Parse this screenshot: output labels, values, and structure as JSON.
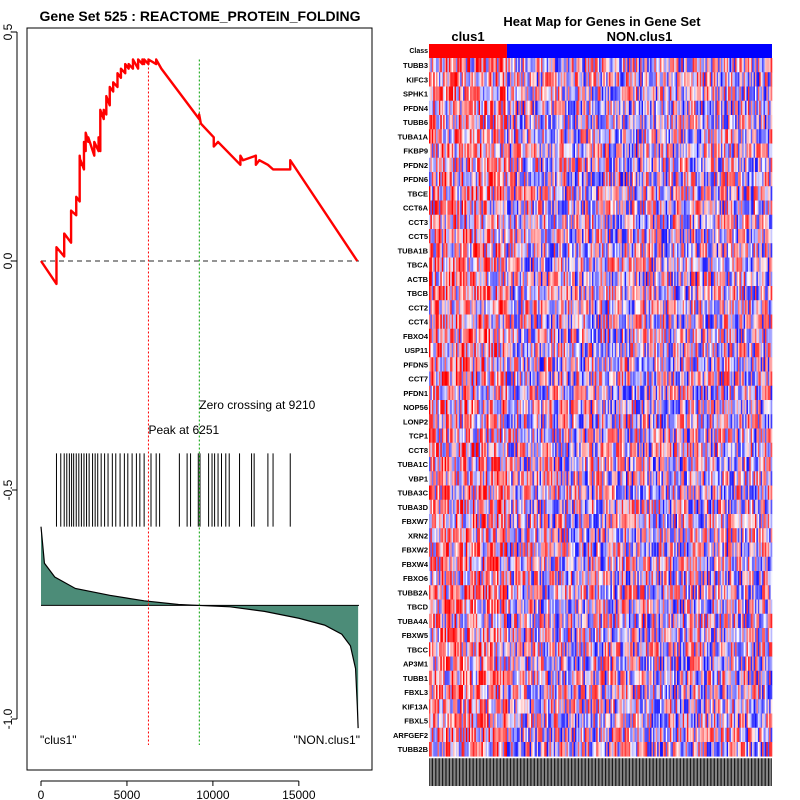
{
  "chart_data": [
    {
      "type": "line",
      "panel": "gsea-enrichment",
      "title": "Gene Set  525 : REACTOME_PROTEIN_FOLDING",
      "x_range": [
        0,
        18500
      ],
      "y_range": [
        -1.1,
        0.5
      ],
      "xticks": [
        0,
        5000,
        10000,
        15000
      ],
      "xtick_labels": [
        "0",
        "5000",
        "10000",
        "15000"
      ],
      "yticks": [
        0.5,
        0.0,
        -0.5,
        -1.0
      ],
      "ytick_labels": [
        "0.5",
        "0.0",
        "-0.5",
        "-1.0"
      ],
      "enrichment_score": {
        "x": [
          0,
          900,
          900,
          1350,
          1350,
          1750,
          1750,
          2050,
          2050,
          2250,
          2250,
          2300,
          2300,
          2500,
          2500,
          2600,
          2600,
          2750,
          2750,
          3100,
          3100,
          3350,
          3350,
          3450,
          3450,
          3650,
          3650,
          3800,
          3800,
          4000,
          4000,
          4200,
          4200,
          4450,
          4450,
          4650,
          4650,
          4900,
          4900,
          5100,
          5100,
          5350,
          5350,
          5650,
          5650,
          5900,
          5900,
          6000,
          6000,
          6251,
          6251,
          6700,
          6700,
          7000,
          9200,
          9200,
          9300,
          10050,
          10050,
          10300,
          11600,
          11600,
          11750,
          12500,
          12500,
          12700,
          13200,
          13200,
          13500,
          14500,
          14500,
          18400
        ],
        "y": [
          0.0,
          -0.05,
          0.03,
          0.01,
          0.06,
          0.04,
          0.11,
          0.1,
          0.14,
          0.13,
          0.23,
          0.21,
          0.22,
          0.2,
          0.26,
          0.24,
          0.28,
          0.26,
          0.27,
          0.23,
          0.26,
          0.24,
          0.27,
          0.24,
          0.33,
          0.31,
          0.33,
          0.32,
          0.36,
          0.34,
          0.38,
          0.37,
          0.39,
          0.38,
          0.41,
          0.4,
          0.42,
          0.41,
          0.43,
          0.42,
          0.43,
          0.42,
          0.44,
          0.42,
          0.44,
          0.43,
          0.44,
          0.43,
          0.44,
          0.43,
          0.44,
          0.43,
          0.44,
          0.42,
          0.31,
          0.32,
          0.3,
          0.27,
          0.25,
          0.26,
          0.21,
          0.23,
          0.22,
          0.23,
          0.21,
          0.22,
          0.21,
          0.21,
          0.2,
          0.2,
          0.22,
          0.0
        ]
      },
      "zero_line": 0.0,
      "peak": {
        "x": 6251,
        "label": "Peak at 6251"
      },
      "zero_crossing": {
        "x": 9210,
        "label": "Zero crossing at 9210"
      },
      "hits": [
        900,
        1150,
        1350,
        1500,
        1650,
        1780,
        1900,
        2050,
        2200,
        2350,
        2500,
        2650,
        2800,
        3000,
        3150,
        3300,
        3500,
        3700,
        3900,
        4150,
        4350,
        4600,
        4850,
        5050,
        5300,
        5550,
        5750,
        6000,
        6400,
        6700,
        6900,
        8050,
        8500,
        8700,
        9150,
        9250,
        9750,
        9950,
        10100,
        10300,
        10500,
        10750,
        10950,
        11550,
        12250,
        12400,
        13200,
        13500,
        14500
      ],
      "hits_y_range": [
        -0.42,
        -0.58
      ],
      "ranked_metric": {
        "x": [
          0,
          200,
          800,
          2000,
          4000,
          6000,
          8000,
          9210,
          11000,
          13000,
          15000,
          16500,
          17500,
          18000,
          18300,
          18400,
          18450
        ],
        "y": [
          -0.58,
          -0.66,
          -0.69,
          -0.715,
          -0.73,
          -0.742,
          -0.75,
          -0.752,
          -0.755,
          -0.765,
          -0.78,
          -0.795,
          -0.815,
          -0.84,
          -0.89,
          -0.97,
          -1.02
        ]
      },
      "ranked_metric_baseline": -0.752,
      "fill_color": "#4c8c78",
      "line_color": "#ff0000",
      "peak_line_color": "#ff0000",
      "zero_crossing_line_color": "#00a000",
      "left_label": "\"clus1\"",
      "right_label": "\"NON.clus1\""
    },
    {
      "type": "heatmap",
      "panel": "gene-heatmap",
      "title": "Heat Map for Genes in Gene Set",
      "class_label": "Class",
      "groups": [
        {
          "name": "clus1",
          "color": "#ff0000",
          "columns": 55
        },
        {
          "name": "NON.clus1",
          "color": "#0000ff",
          "columns": 187
        }
      ],
      "low_color": "#0000ff",
      "mid_color": "#ffffff",
      "high_color": "#ff0000",
      "genes": [
        "TUBB3",
        "KIFC3",
        "SPHK1",
        "PFDN4",
        "TUBB6",
        "TUBA1A",
        "FKBP9",
        "PFDN2",
        "PFDN6",
        "TBCE",
        "CCT6A",
        "CCT3",
        "CCT5",
        "TUBA1B",
        "TBCA",
        "ACTB",
        "TBCB",
        "CCT2",
        "CCT4",
        "FBXO4",
        "USP11",
        "PFDN5",
        "CCT7",
        "PFDN1",
        "NOP56",
        "LONP2",
        "TCP1",
        "CCT8",
        "TUBA1C",
        "VBP1",
        "TUBA3C",
        "TUBA3D",
        "FBXW7",
        "XRN2",
        "FBXW2",
        "FBXW4",
        "FBXO6",
        "TUBB2A",
        "TBCD",
        "TUBA4A",
        "FBXW5",
        "TBCC",
        "AP3M1",
        "TUBB1",
        "FBXL3",
        "KIF13A",
        "FBXL5",
        "ARFGEF2",
        "TUBB2B"
      ]
    }
  ]
}
